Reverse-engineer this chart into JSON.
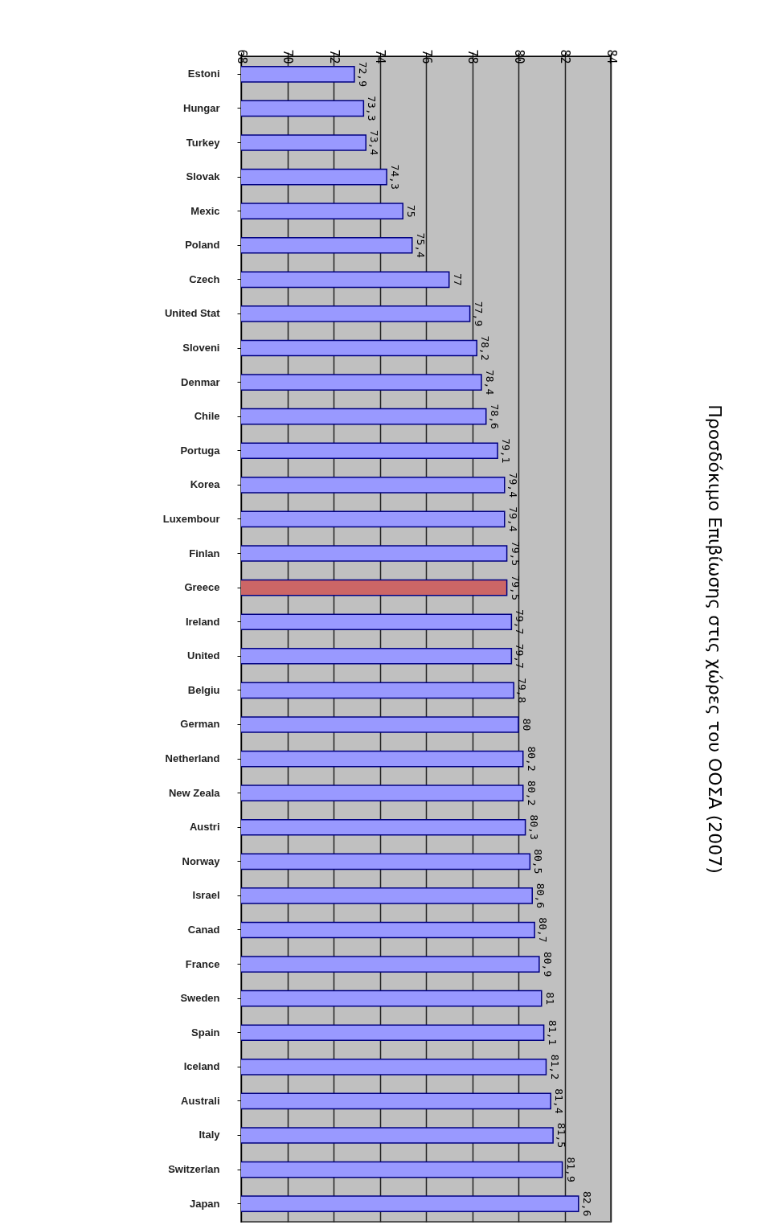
{
  "chart_data": {
    "type": "bar",
    "orientation": "horizontal",
    "title": "Προσδόκιμο Επιβίωσης στις χώρες του ΟΟΣΑ (2007)",
    "categories": [
      "Estoni",
      "Hungar",
      "Turkey",
      "Slovak",
      "Mexic",
      "Poland",
      "Czech",
      "United Stat",
      "Sloveni",
      "Denmar",
      "Chile",
      "Portuga",
      "Korea",
      "Luxembour",
      "Finlan",
      "Greece",
      "Ireland",
      "United",
      "Belgiu",
      "German",
      "Netherland",
      "New Zeala",
      "Austri",
      "Norway",
      "Israel",
      "Canad",
      "France",
      "Sweden",
      "Spain",
      "Iceland",
      "Australi",
      "Italy",
      "Switzerlan",
      "Japan"
    ],
    "values": [
      72.9,
      73.3,
      73.4,
      74.3,
      75,
      75.4,
      77,
      77.9,
      78.2,
      78.4,
      78.6,
      79.1,
      79.4,
      79.4,
      79.5,
      79.5,
      79.7,
      79.7,
      79.8,
      80,
      80.2,
      80.2,
      80.3,
      80.5,
      80.6,
      80.7,
      80.9,
      81,
      81.1,
      81.2,
      81.4,
      81.5,
      81.9,
      82.6
    ],
    "value_labels": [
      "72,9",
      "73,3",
      "73,4",
      "74,3",
      "75",
      "75,4",
      "77",
      "77,9",
      "78,2",
      "78,4",
      "78,6",
      "79,1",
      "79,4",
      "79,4",
      "79,5",
      "79,5",
      "79,7",
      "79,7",
      "79,8",
      "80",
      "80,2",
      "80,2",
      "80,3",
      "80,5",
      "80,6",
      "80,7",
      "80,9",
      "81",
      "81,1",
      "81,2",
      "81,4",
      "81,5",
      "81,9",
      "82,6"
    ],
    "colors": [
      "#9999ff",
      "#9999ff",
      "#9999ff",
      "#9999ff",
      "#9999ff",
      "#9999ff",
      "#9999ff",
      "#9999ff",
      "#9999ff",
      "#9999ff",
      "#9999ff",
      "#9999ff",
      "#9999ff",
      "#9999ff",
      "#9999ff",
      "#cc6666",
      "#9999ff",
      "#9999ff",
      "#9999ff",
      "#9999ff",
      "#9999ff",
      "#9999ff",
      "#9999ff",
      "#9999ff",
      "#9999ff",
      "#9999ff",
      "#9999ff",
      "#9999ff",
      "#9999ff",
      "#9999ff",
      "#9999ff",
      "#9999ff",
      "#9999ff",
      "#9999ff"
    ],
    "xlim": [
      68,
      84
    ],
    "xticks": [
      68,
      70,
      72,
      74,
      76,
      78,
      80,
      82,
      84
    ],
    "grid": true
  }
}
